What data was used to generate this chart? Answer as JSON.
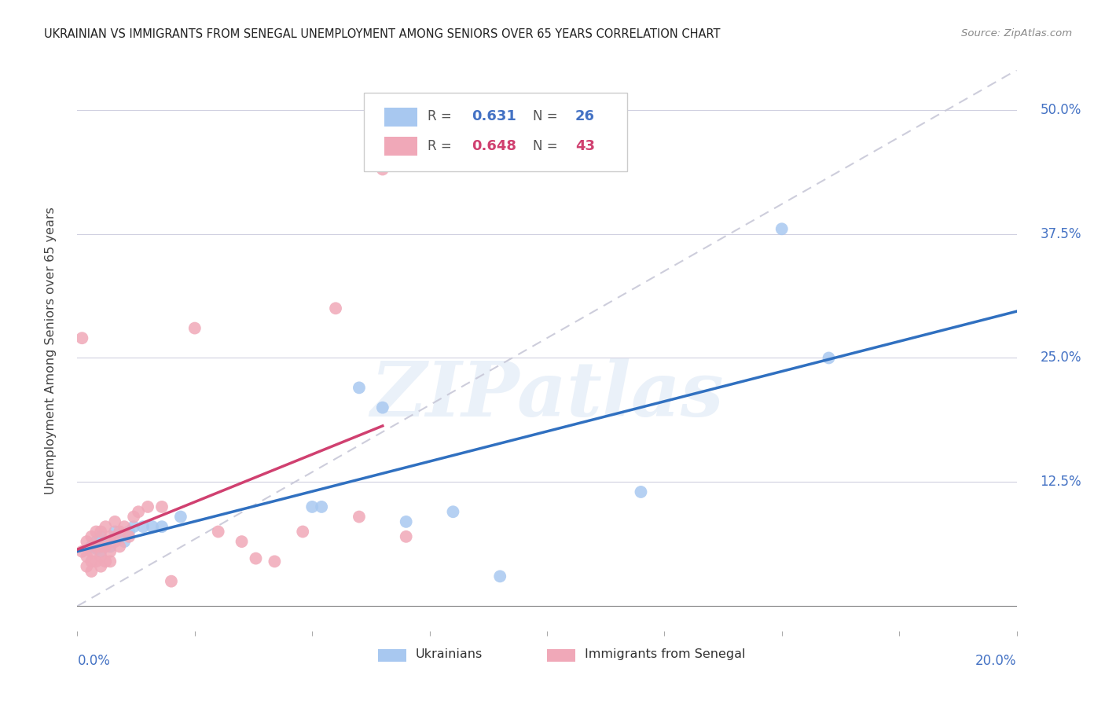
{
  "title": "UKRAINIAN VS IMMIGRANTS FROM SENEGAL UNEMPLOYMENT AMONG SENIORS OVER 65 YEARS CORRELATION CHART",
  "source": "Source: ZipAtlas.com",
  "ylabel": "Unemployment Among Seniors over 65 years",
  "xlim": [
    0.0,
    0.2
  ],
  "ylim": [
    -0.025,
    0.54
  ],
  "blue_R": "0.631",
  "blue_N": "26",
  "pink_R": "0.648",
  "pink_N": "43",
  "blue_color": "#a8c8f0",
  "pink_color": "#f0a8b8",
  "blue_line_color": "#3070c0",
  "pink_line_color": "#d04070",
  "diagonal_color": "#c8c8d8",
  "background_color": "#ffffff",
  "watermark": "ZIPatlas",
  "label_color": "#4472c4",
  "pink_label_color": "#d04070",
  "blue_points_x": [
    0.003,
    0.004,
    0.005,
    0.006,
    0.007,
    0.008,
    0.009,
    0.01,
    0.011,
    0.012,
    0.014,
    0.016,
    0.018,
    0.022,
    0.05,
    0.052,
    0.06,
    0.065,
    0.07,
    0.08,
    0.09,
    0.12,
    0.15,
    0.16,
    0.004,
    0.005
  ],
  "blue_points_y": [
    0.06,
    0.065,
    0.07,
    0.065,
    0.06,
    0.075,
    0.07,
    0.065,
    0.075,
    0.08,
    0.08,
    0.08,
    0.08,
    0.09,
    0.1,
    0.1,
    0.22,
    0.2,
    0.085,
    0.095,
    0.03,
    0.115,
    0.38,
    0.25,
    0.058,
    0.055
  ],
  "pink_points_x": [
    0.001,
    0.002,
    0.002,
    0.002,
    0.003,
    0.003,
    0.003,
    0.003,
    0.004,
    0.004,
    0.004,
    0.005,
    0.005,
    0.005,
    0.005,
    0.006,
    0.006,
    0.006,
    0.007,
    0.007,
    0.007,
    0.008,
    0.008,
    0.009,
    0.009,
    0.01,
    0.011,
    0.012,
    0.013,
    0.015,
    0.018,
    0.02,
    0.025,
    0.03,
    0.035,
    0.038,
    0.042,
    0.048,
    0.055,
    0.06,
    0.065,
    0.001,
    0.07
  ],
  "pink_points_y": [
    0.055,
    0.065,
    0.05,
    0.04,
    0.07,
    0.055,
    0.045,
    0.035,
    0.075,
    0.06,
    0.045,
    0.075,
    0.06,
    0.05,
    0.04,
    0.08,
    0.06,
    0.045,
    0.07,
    0.055,
    0.045,
    0.085,
    0.065,
    0.075,
    0.06,
    0.08,
    0.07,
    0.09,
    0.095,
    0.1,
    0.1,
    0.025,
    0.28,
    0.075,
    0.065,
    0.048,
    0.045,
    0.075,
    0.3,
    0.09,
    0.44,
    0.27,
    0.07
  ]
}
